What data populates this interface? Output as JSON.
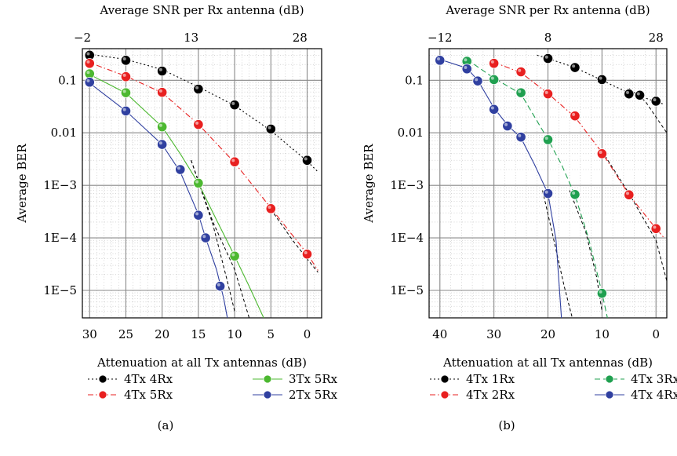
{
  "panel_labels": [
    "(a)",
    "(b)"
  ],
  "chart_data": [
    {
      "type": "line",
      "panel": "(a)",
      "xlabel": "Attenuation at all Tx antennas (dB)",
      "top_xlabel": "Average SNR per Rx antenna (dB)",
      "ylabel": "Average BER",
      "x_ticks": [
        "30",
        "25",
        "20",
        "15",
        "10",
        "5",
        "0"
      ],
      "top_ticks": [
        "−2",
        "13",
        "28"
      ],
      "y_ticks": [
        "0.1",
        "0.01",
        "1E−3",
        "1E−4",
        "1E−5"
      ],
      "xlim": [
        31,
        -2
      ],
      "ylog": true,
      "ylim": [
        3e-06,
        0.4
      ],
      "grid": true,
      "legend_position": "bottom",
      "series": [
        {
          "name": "4Tx 4Rx",
          "color": "#000000",
          "line_style": "dotted",
          "points": [
            [
              30,
              0.3
            ],
            [
              25,
              0.24
            ],
            [
              20,
              0.15
            ],
            [
              15,
              0.068
            ],
            [
              10,
              0.034
            ],
            [
              5,
              0.0118
            ],
            [
              0,
              0.003
            ]
          ],
          "fit": [
            [
              30.5,
              0.32
            ],
            [
              25,
              0.25
            ],
            [
              20,
              0.16
            ],
            [
              15,
              0.075
            ],
            [
              10,
              0.033
            ],
            [
              5,
              0.011
            ],
            [
              0,
              0.0029
            ],
            [
              -1.5,
              0.0018
            ]
          ]
        },
        {
          "name": "4Tx 5Rx",
          "color": "#e82020",
          "line_style": "dashdot",
          "points": [
            [
              30,
              0.21
            ],
            [
              25,
              0.117
            ],
            [
              20,
              0.059
            ],
            [
              15,
              0.0144
            ],
            [
              10,
              0.0028
            ],
            [
              5,
              0.00036
            ],
            [
              0,
              4.9e-05
            ]
          ],
          "fit": [
            [
              30.5,
              0.23
            ],
            [
              25,
              0.12
            ],
            [
              20,
              0.058
            ],
            [
              15,
              0.0145
            ],
            [
              10,
              0.0027
            ],
            [
              5,
              0.00037
            ],
            [
              0,
              5e-05
            ],
            [
              -1.5,
              2.4e-05
            ]
          ]
        },
        {
          "name": "3Tx 5Rx",
          "color": "#4cb830",
          "line_style": "solid",
          "points": [
            [
              30,
              0.133
            ],
            [
              25,
              0.058
            ],
            [
              20,
              0.013
            ],
            [
              15,
              0.0011
            ],
            [
              10,
              4.5e-05
            ]
          ],
          "fit": [
            [
              30.5,
              0.14
            ],
            [
              25,
              0.057
            ],
            [
              20,
              0.013
            ],
            [
              17.5,
              0.004
            ],
            [
              15,
              0.0011
            ],
            [
              12.5,
              0.00022
            ],
            [
              10,
              4.5e-05
            ],
            [
              8,
              1.2e-05
            ],
            [
              6,
              3e-06
            ]
          ]
        },
        {
          "name": "2Tx 5Rx",
          "color": "#3040a0",
          "line_style": "solid",
          "points": [
            [
              30,
              0.092
            ],
            [
              25,
              0.026
            ],
            [
              20,
              0.006
            ],
            [
              17.5,
              0.002
            ],
            [
              15,
              0.00027
            ],
            [
              14,
              0.0001
            ],
            [
              12,
              1.2e-05
            ]
          ],
          "fit": [
            [
              30.5,
              0.1
            ],
            [
              25,
              0.026
            ],
            [
              20,
              0.006
            ],
            [
              17.5,
              0.0018
            ],
            [
              15,
              0.00028
            ],
            [
              14,
              0.0001
            ],
            [
              12.5,
              2.5e-05
            ],
            [
              11.5,
              7e-06
            ],
            [
              11,
              3e-06
            ]
          ]
        }
      ],
      "asymptotes": [
        [
          [
            16,
            0.003
          ],
          [
            13,
            0.0002
          ],
          [
            10,
            2.5e-05
          ],
          [
            8,
            3e-06
          ]
        ],
        [
          [
            16,
            0.003
          ],
          [
            13,
            0.00018
          ],
          [
            11,
            1.5e-05
          ],
          [
            10,
            4e-06
          ]
        ],
        [
          [
            5,
            0.00035
          ],
          [
            2,
            9e-05
          ],
          [
            0,
            4e-05
          ],
          [
            -1.5,
            2.2e-05
          ]
        ]
      ]
    },
    {
      "type": "line",
      "panel": "(b)",
      "xlabel": "Attenuation at all Tx antennas (dB)",
      "top_xlabel": "Average SNR per Rx antenna (dB)",
      "ylabel": "Average BER",
      "x_ticks": [
        "40",
        "30",
        "20",
        "10",
        "0"
      ],
      "top_ticks": [
        "−12",
        "8",
        "28"
      ],
      "y_ticks": [
        "0.1",
        "0.01",
        "1E−3",
        "1E−4",
        "1E−5"
      ],
      "xlim": [
        42,
        -2
      ],
      "ylog": true,
      "ylim": [
        3e-06,
        0.4
      ],
      "grid": true,
      "legend_position": "bottom",
      "series": [
        {
          "name": "4Tx 1Rx",
          "color": "#000000",
          "line_style": "dotted",
          "points": [
            [
              20,
              0.26
            ],
            [
              15,
              0.175
            ],
            [
              10,
              0.103
            ],
            [
              5,
              0.055
            ],
            [
              3,
              0.052
            ],
            [
              0,
              0.04
            ]
          ],
          "fit": [
            [
              22,
              0.3
            ],
            [
              20,
              0.26
            ],
            [
              15,
              0.175
            ],
            [
              10,
              0.1
            ],
            [
              5,
              0.057
            ],
            [
              3,
              0.05
            ],
            [
              0,
              0.039
            ],
            [
              -1.5,
              0.035
            ]
          ]
        },
        {
          "name": "4Tx 2Rx",
          "color": "#e82020",
          "line_style": "dashdot",
          "points": [
            [
              30,
              0.21
            ],
            [
              25,
              0.145
            ],
            [
              20,
              0.055
            ],
            [
              15,
              0.021
            ],
            [
              10,
              0.004
            ],
            [
              5,
              0.00066
            ],
            [
              0,
              0.00015
            ]
          ],
          "fit": [
            [
              30,
              0.22
            ],
            [
              25,
              0.14
            ],
            [
              20,
              0.056
            ],
            [
              15,
              0.02
            ],
            [
              10,
              0.0042
            ],
            [
              5,
              0.00066
            ],
            [
              0,
              0.00015
            ],
            [
              -1.5,
              0.0001
            ]
          ]
        },
        {
          "name": "4Tx 3Rx",
          "color": "#20a050",
          "line_style": "dashed",
          "points": [
            [
              35,
              0.23
            ],
            [
              30,
              0.103
            ],
            [
              25,
              0.058
            ],
            [
              20,
              0.0074
            ],
            [
              15,
              0.00067
            ],
            [
              10,
              8.8e-06
            ]
          ],
          "fit": [
            [
              35,
              0.25
            ],
            [
              30,
              0.11
            ],
            [
              25,
              0.055
            ],
            [
              20,
              0.0075
            ],
            [
              17.5,
              0.0025
            ],
            [
              15,
              0.00065
            ],
            [
              12.5,
              0.0001
            ],
            [
              10,
              9e-06
            ],
            [
              9,
              3e-06
            ]
          ]
        },
        {
          "name": "4Tx 4Rx",
          "color": "#3040a0",
          "line_style": "solid",
          "points": [
            [
              40,
              0.24
            ],
            [
              35,
              0.165
            ],
            [
              33,
              0.097
            ],
            [
              30,
              0.028
            ],
            [
              27.5,
              0.0135
            ],
            [
              25,
              0.0083
            ],
            [
              20,
              0.0007
            ]
          ],
          "fit": [
            [
              40,
              0.25
            ],
            [
              35,
              0.17
            ],
            [
              33,
              0.1
            ],
            [
              30,
              0.03
            ],
            [
              27.5,
              0.014
            ],
            [
              25,
              0.008
            ],
            [
              22.5,
              0.0025
            ],
            [
              20,
              0.0007
            ],
            [
              18.5,
              9e-05
            ],
            [
              17.5,
              3e-06
            ]
          ]
        }
      ],
      "asymptotes": [
        [
          [
            21,
            0.0008
          ],
          [
            19,
            0.0001
          ],
          [
            17,
            1.2e-05
          ],
          [
            15.5,
            3e-06
          ]
        ],
        [
          [
            16,
            0.0008
          ],
          [
            13,
            0.00013
          ],
          [
            11,
            1.8e-05
          ],
          [
            10,
            4e-06
          ]
        ],
        [
          [
            10,
            0.0045
          ],
          [
            5,
            0.0007
          ],
          [
            0,
            9e-05
          ],
          [
            -2,
            1.5e-05
          ]
        ],
        [
          [
            5,
            0.07
          ],
          [
            2,
            0.04
          ],
          [
            0,
            0.02
          ],
          [
            -2,
            0.01
          ]
        ]
      ]
    }
  ]
}
